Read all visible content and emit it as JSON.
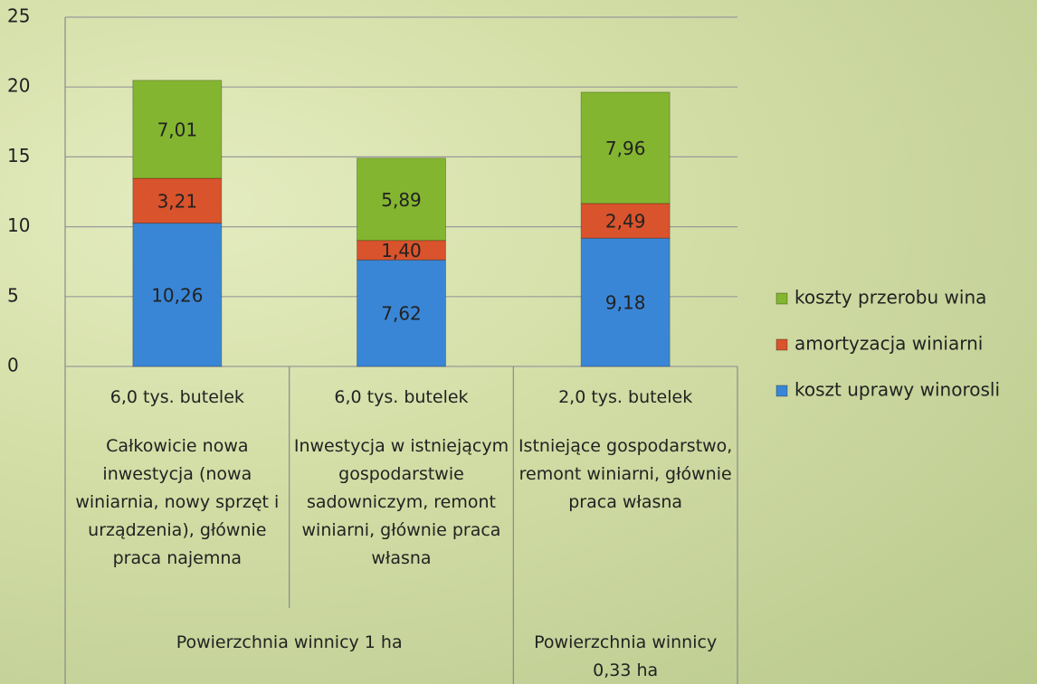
{
  "chart_data": {
    "type": "stacked_bar",
    "categories": [
      "6,0 tys. butelek",
      "6,0 tys. butelek",
      "2,0 tys. butelek"
    ],
    "category_descriptions": [
      "Całkowicie nowa inwestycja (nowa winiarnia, nowy sprzęt i urządzenia), głównie praca najemna",
      "Inwestycja w istniejącym gospodarstwie sadowniczym, remont winiarni, głównie praca własna",
      "Istniejące gospodarstwo, remont winiarni, głównie praca własna"
    ],
    "group_labels": [
      "Powierzchnia winnicy 1 ha",
      "Powierzchnia winnicy 0,33 ha"
    ],
    "series": [
      {
        "name": "koszt uprawy winorosli",
        "color": "#3a86d6",
        "values": [
          10.26,
          7.62,
          9.18
        ],
        "value_labels": [
          "10,26",
          "7,62",
          "9,18"
        ]
      },
      {
        "name": "amortyzacja winiarni",
        "color": "#d9532c",
        "values": [
          3.21,
          1.4,
          2.49
        ],
        "value_labels": [
          "3,21",
          "1,40",
          "2,49"
        ]
      },
      {
        "name": "koszty przerobu wina",
        "color": "#84b530",
        "values": [
          7.01,
          5.89,
          7.96
        ],
        "value_labels": [
          "7,01",
          "5,89",
          "7,96"
        ]
      }
    ],
    "ylim": [
      0,
      25
    ],
    "yticks": [
      0,
      5,
      10,
      15,
      20,
      25
    ],
    "grid": true,
    "legend": "right"
  }
}
